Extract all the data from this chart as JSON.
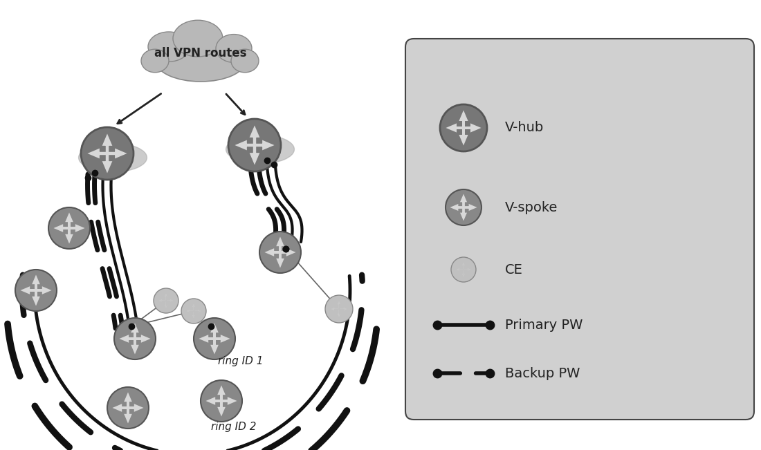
{
  "bg_color": "#ffffff",
  "cloud_color": "#b8b8b8",
  "cloud_edge_color": "#888888",
  "legend_bg": "#d0d0d0",
  "legend_edge": "#444444",
  "vhub_color": "#777777",
  "vspoke_color": "#888888",
  "ce_color": "#aaaaaa",
  "node_arrow_color": "#d8d8d8",
  "primary_pw_color": "#111111",
  "backup_pw_color": "#111111",
  "dot_color": "#111111",
  "cloud_text": "all VPN routes",
  "ring1_label": "ring ID 1",
  "ring2_label": "ring ID 2",
  "legend_items": [
    "V-hub",
    "V-spoke",
    "CE",
    "Primary PW",
    "Backup PW"
  ],
  "figw": 11.0,
  "figh": 6.51
}
